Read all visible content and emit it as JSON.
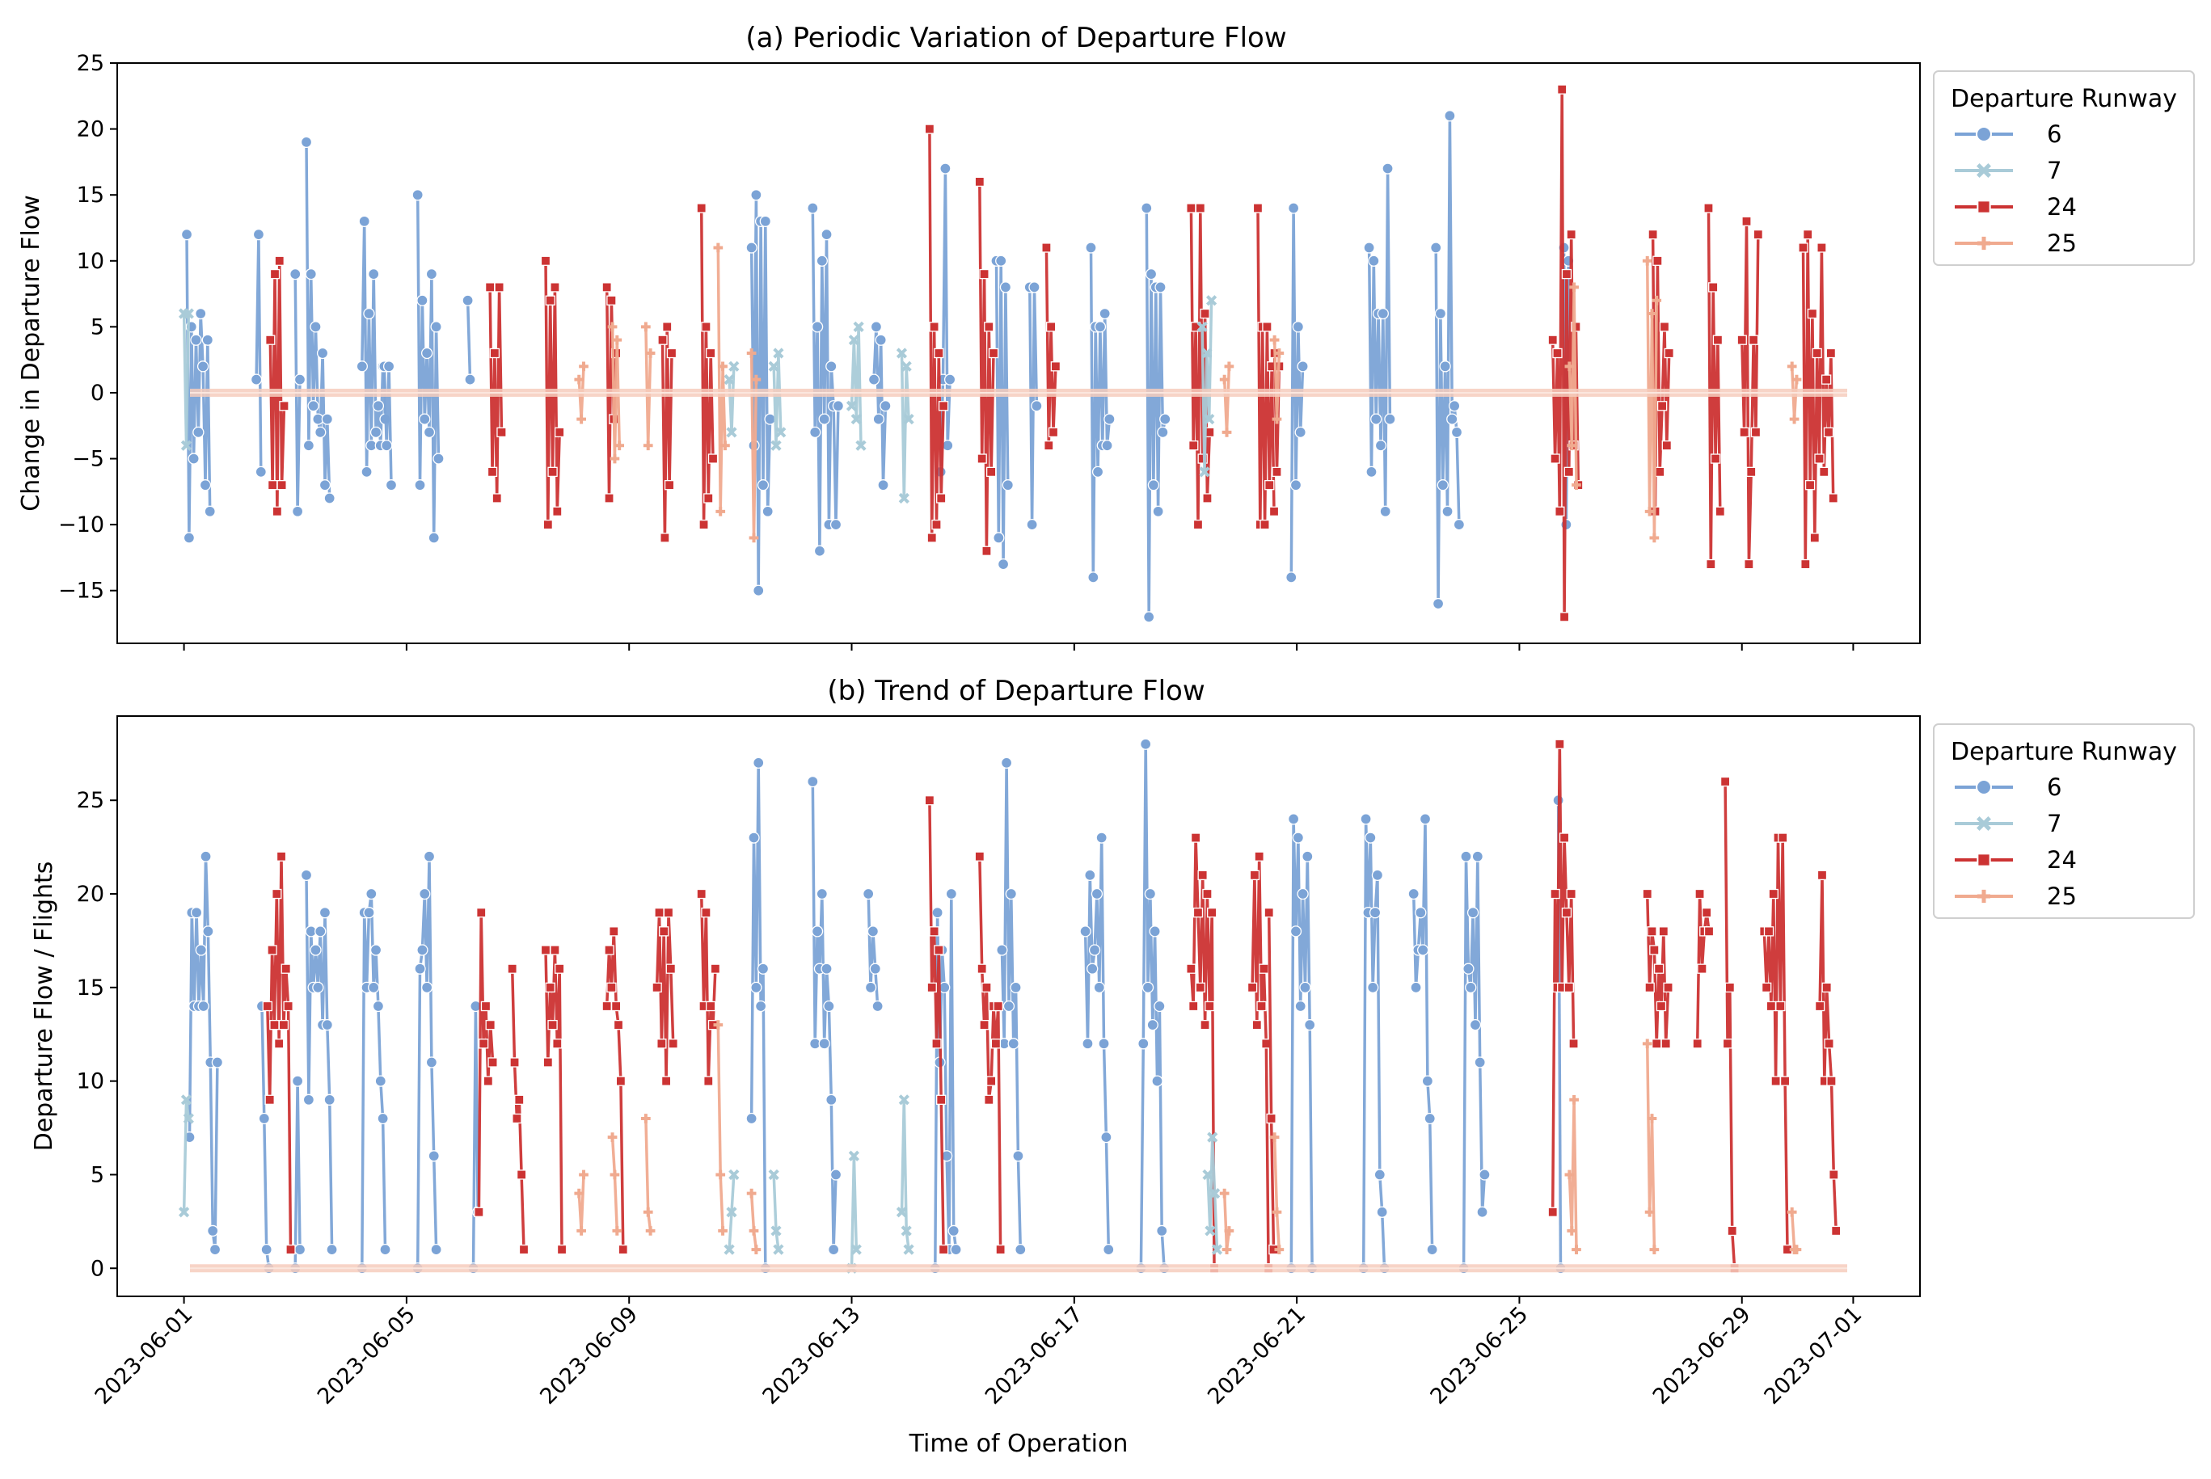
{
  "figure": {
    "shared_xlabel": "Time of Operation",
    "x_tick_labels": [
      "2023-06-01",
      "2023-06-05",
      "2023-06-09",
      "2023-06-13",
      "2023-06-17",
      "2023-06-21",
      "2023-06-25",
      "2023-06-29",
      "2023-07-01"
    ],
    "x_tick_days": [
      0,
      4,
      8,
      12,
      16,
      20,
      24,
      28,
      30
    ]
  },
  "series_style": [
    {
      "name": "6",
      "color": "#7ba3d6",
      "marker": "circle"
    },
    {
      "name": "7",
      "color": "#a9cbd8",
      "marker": "x"
    },
    {
      "name": "24",
      "color": "#cc3333",
      "marker": "square"
    },
    {
      "name": "25",
      "color": "#f0aa8f",
      "marker": "plus"
    }
  ],
  "chart_data": [
    {
      "type": "line",
      "title": "(a) Periodic Variation of Departure Flow",
      "xlabel": "",
      "ylabel": "Change in Departure Flow",
      "ylim": [
        -19,
        25
      ],
      "yticks": [
        -15,
        -10,
        -5,
        0,
        5,
        10,
        15,
        20,
        25
      ],
      "xlim_days": [
        -1.2,
        31.2
      ],
      "legend_title": "Departure Runway",
      "legend_position": "outside-right-top",
      "series": [
        {
          "name": "6",
          "segments": [
            [
              0.05,
              12,
              -11,
              5,
              -5,
              4,
              -3,
              6,
              2,
              -7,
              4,
              -9
            ],
            [
              1.3,
              1,
              12,
              -6
            ],
            [
              2.0,
              9,
              -9,
              1
            ],
            [
              2.2,
              19,
              -4,
              9,
              -1,
              5,
              -2,
              -3,
              3,
              -7,
              -2,
              -8
            ],
            [
              3.2,
              2,
              13,
              -6,
              6,
              -4,
              9,
              -3,
              -1,
              -4,
              2,
              -2
            ],
            [
              3.6,
              2,
              -4,
              2,
              -7
            ],
            [
              4.2,
              15,
              -7,
              7,
              -2,
              3,
              -3,
              9,
              -11,
              5,
              -5
            ],
            [
              5.1,
              7,
              1
            ],
            [
              10.2,
              11,
              -4,
              15,
              -15,
              13,
              -7,
              13,
              -9,
              -2
            ],
            [
              11.3,
              14,
              -3,
              5,
              -12,
              10,
              -2,
              12,
              -10,
              2,
              -1,
              -10,
              -1
            ],
            [
              12.4,
              1,
              5,
              -2,
              4,
              -7,
              -1
            ],
            [
              13.6,
              -6,
              1,
              17,
              -4,
              1
            ],
            [
              14.6,
              10,
              -11,
              10,
              -13,
              8,
              -7
            ],
            [
              15.2,
              8,
              -10,
              8,
              -1
            ],
            [
              16.3,
              11,
              -14,
              5,
              -6,
              5,
              -4,
              6,
              -4,
              -2
            ],
            [
              17.3,
              14,
              -17,
              9,
              -7,
              8,
              -9,
              8,
              -3,
              -2
            ],
            [
              19.9,
              -14,
              14,
              -7,
              5,
              -3,
              2
            ],
            [
              21.3,
              11,
              -6,
              10,
              -2,
              6,
              -4,
              6,
              -9,
              17,
              -2
            ],
            [
              22.5,
              11,
              -16,
              6,
              -7,
              2,
              -9,
              21,
              -2,
              -1,
              -3,
              -10
            ],
            [
              24.8,
              11,
              -10,
              10
            ]
          ]
        },
        {
          "name": "7",
          "segments": [
            [
              0.0,
              6,
              -4,
              6
            ],
            [
              9.8,
              1,
              -3,
              2
            ],
            [
              10.6,
              2,
              -4,
              3,
              -3
            ],
            [
              12.0,
              -1,
              4,
              -2,
              5,
              -4
            ],
            [
              12.9,
              3,
              -8,
              2,
              -2
            ],
            [
              18.3,
              5,
              -6,
              3,
              -2,
              7
            ]
          ]
        },
        {
          "name": "24",
          "segments": [
            [
              1.55,
              4,
              -7,
              9,
              -9,
              10,
              -7,
              -1
            ],
            [
              5.5,
              8,
              -6,
              3,
              -8,
              8,
              -3
            ],
            [
              6.5,
              10,
              -10,
              7,
              -6,
              8,
              -9,
              -3
            ],
            [
              7.6,
              8,
              -8,
              7,
              -2,
              3
            ],
            [
              8.6,
              4,
              -11,
              5,
              -7,
              3
            ],
            [
              9.3,
              14,
              -10,
              5,
              -8,
              3,
              -5
            ],
            [
              13.4,
              20,
              -11,
              5,
              -10,
              3,
              -8,
              -1
            ],
            [
              14.3,
              16,
              -5,
              9,
              -12,
              5,
              -6,
              3
            ],
            [
              15.5,
              11,
              -4,
              5,
              -3,
              2
            ],
            [
              18.1,
              14,
              -4,
              5,
              -10,
              14,
              -5,
              6,
              -8,
              -3
            ],
            [
              19.3,
              14,
              -10,
              5,
              -10,
              5,
              -7,
              2,
              -9
            ],
            [
              19.6,
              3,
              -6,
              2
            ],
            [
              24.6,
              4,
              -5,
              3,
              -9,
              23,
              -17,
              9,
              -6,
              12,
              -4,
              5,
              -7
            ],
            [
              26.4,
              12,
              -9,
              10,
              -6,
              -1,
              5,
              -4,
              3
            ],
            [
              27.4,
              14,
              -13,
              8,
              -5,
              4,
              -9
            ],
            [
              28.0,
              4,
              -3,
              13,
              -13,
              -6,
              4,
              -3,
              12
            ],
            [
              29.1,
              11,
              -13,
              12,
              -7,
              6,
              -11,
              3,
              -5,
              11,
              -6,
              1,
              -3,
              3,
              -8
            ]
          ]
        },
        {
          "name": "25",
          "segments": [
            [
              7.1,
              1,
              -2,
              2
            ],
            [
              7.7,
              5,
              -5,
              4,
              -4
            ],
            [
              8.3,
              5,
              -4,
              3
            ],
            [
              9.6,
              11,
              -9,
              2,
              -4
            ],
            [
              10.2,
              3,
              -11,
              1
            ],
            [
              18.7,
              1,
              -3,
              2
            ],
            [
              19.6,
              4,
              -2,
              3
            ],
            [
              24.9,
              2,
              -4,
              8,
              -7
            ],
            [
              26.3,
              10,
              -9,
              6,
              -11,
              7
            ],
            [
              28.9,
              2,
              -2,
              1
            ]
          ]
        }
      ]
    },
    {
      "type": "line",
      "title": "(b) Trend of Departure Flow",
      "xlabel": "Time of Operation",
      "ylabel": "Departure Flow / Flights",
      "ylim": [
        -1.5,
        29.5
      ],
      "yticks": [
        0,
        5,
        10,
        15,
        20,
        25
      ],
      "xlim_days": [
        -1.2,
        31.2
      ],
      "legend_title": "Departure Runway",
      "legend_position": "outside-right-top",
      "series": [
        {
          "name": "6",
          "segments": [
            [
              0.1,
              7,
              19,
              14,
              19,
              14,
              17,
              14,
              22,
              18,
              11,
              2,
              1,
              11
            ],
            [
              1.4,
              14,
              8,
              1,
              0
            ],
            [
              2.0,
              0,
              10,
              1
            ],
            [
              2.2,
              21,
              9,
              18,
              15,
              17,
              15,
              18,
              13,
              19,
              13,
              9,
              1
            ],
            [
              3.2,
              0,
              19,
              15,
              19,
              20,
              15,
              17,
              14,
              10,
              8,
              1
            ],
            [
              4.2,
              0,
              16,
              17,
              20,
              15,
              22,
              11,
              6,
              1
            ],
            [
              5.2,
              0,
              14,
              3
            ],
            [
              10.2,
              8,
              23,
              15,
              27,
              14,
              16,
              0
            ],
            [
              11.3,
              26,
              12,
              18,
              16,
              20,
              12,
              16,
              14,
              9,
              1,
              5
            ],
            [
              12.3,
              20,
              15,
              18,
              16,
              14
            ],
            [
              13.5,
              0,
              19,
              11,
              17,
              15,
              6,
              1,
              20,
              2,
              1
            ],
            [
              14.7,
              17,
              12,
              27,
              14,
              20,
              12,
              15,
              6,
              1
            ],
            [
              16.2,
              18,
              12,
              21,
              16,
              17,
              20,
              15,
              23,
              12,
              7,
              1
            ],
            [
              17.2,
              0,
              12,
              28,
              15,
              20,
              13,
              18,
              10,
              14,
              2,
              0
            ],
            [
              19.9,
              0,
              24,
              18,
              23,
              14,
              20,
              15,
              22,
              13,
              0
            ],
            [
              21.2,
              0,
              24,
              19,
              23,
              15,
              19,
              21,
              5,
              3,
              0
            ],
            [
              22.1,
              20,
              15,
              17,
              19,
              17,
              24,
              10,
              8,
              1
            ],
            [
              23.0,
              0,
              22,
              16,
              15,
              19,
              13,
              22,
              11,
              3,
              5
            ],
            [
              24.7,
              25,
              0
            ]
          ]
        },
        {
          "name": "7",
          "segments": [
            [
              0.0,
              3,
              9,
              8
            ],
            [
              9.8,
              1,
              3,
              5
            ],
            [
              10.6,
              5,
              2,
              1
            ],
            [
              12.0,
              0,
              6,
              1
            ],
            [
              12.9,
              3,
              9,
              2,
              1
            ],
            [
              18.4,
              5,
              2,
              7,
              4,
              1
            ]
          ]
        },
        {
          "name": "24",
          "segments": [
            [
              1.5,
              14,
              9,
              17,
              13,
              20,
              12,
              22,
              13,
              16,
              14,
              1
            ],
            [
              5.3,
              3,
              19,
              12,
              14,
              10,
              13,
              11
            ],
            [
              5.9,
              16,
              11,
              8,
              9,
              5,
              1
            ],
            [
              6.5,
              17,
              11,
              15,
              13,
              17,
              12,
              16,
              1
            ],
            [
              7.6,
              14,
              17,
              15,
              18,
              14,
              13,
              10,
              1
            ],
            [
              8.5,
              15,
              19,
              12,
              18,
              10,
              19,
              16,
              12
            ],
            [
              9.3,
              20,
              14,
              19,
              10,
              14,
              13,
              16
            ],
            [
              13.4,
              25,
              15,
              18,
              12,
              17,
              9,
              1
            ],
            [
              14.3,
              22,
              16,
              13,
              15,
              9,
              10,
              14,
              12,
              14,
              1
            ],
            [
              18.1,
              16,
              14,
              23,
              19,
              15,
              21,
              13,
              20,
              14,
              19,
              0
            ],
            [
              19.2,
              15,
              21,
              13,
              22,
              14,
              16,
              12,
              0
            ],
            [
              19.5,
              19,
              8,
              1
            ],
            [
              24.6,
              3,
              20,
              15,
              28,
              15,
              23,
              19,
              15,
              20,
              12
            ],
            [
              26.3,
              20,
              15,
              18,
              17,
              12,
              16,
              14,
              18,
              12,
              15
            ],
            [
              27.2,
              12,
              20,
              16,
              18,
              19,
              18
            ],
            [
              27.7,
              26,
              12,
              15,
              2,
              0
            ],
            [
              28.4,
              18,
              15,
              18,
              14,
              20,
              10,
              23,
              14,
              23,
              10,
              1
            ],
            [
              29.4,
              14,
              21,
              10,
              15,
              12,
              10,
              5,
              2
            ]
          ]
        },
        {
          "name": "25",
          "segments": [
            [
              7.1,
              4,
              2,
              5
            ],
            [
              7.7,
              7,
              5,
              2
            ],
            [
              8.3,
              8,
              3,
              2
            ],
            [
              9.6,
              13,
              5,
              2
            ],
            [
              10.2,
              4,
              2,
              1
            ],
            [
              18.7,
              4,
              1,
              2
            ],
            [
              19.6,
              7,
              3,
              1
            ],
            [
              24.9,
              5,
              2,
              9,
              1
            ],
            [
              26.3,
              12,
              3,
              8,
              1
            ],
            [
              28.9,
              3,
              1,
              1
            ]
          ]
        }
      ]
    }
  ]
}
